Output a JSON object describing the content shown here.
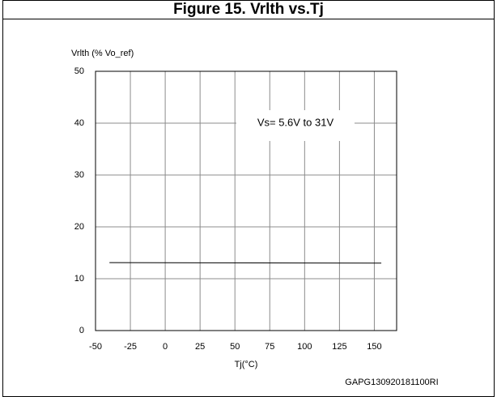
{
  "chart_data": {
    "type": "line",
    "title": "Figure 15. Vrlth vs.Tj",
    "ylabel": "Vrlth (% Vo_ref)",
    "xlabel": "Tj(°C)",
    "annotation": "Vs= 5.6V to 31V",
    "footnote": "GAPG130920181100RI",
    "x": [
      -40,
      155
    ],
    "series": [
      {
        "name": "Vrlth",
        "color": "#000000",
        "values": [
          13.1,
          13.0
        ]
      }
    ],
    "xlim": [
      -50,
      166
    ],
    "xticks": [
      -50,
      -25,
      0,
      25,
      50,
      75,
      100,
      125,
      150
    ],
    "ylim": [
      0,
      50
    ],
    "yticks": [
      0,
      10,
      20,
      30,
      40,
      50
    ],
    "grid": true
  }
}
